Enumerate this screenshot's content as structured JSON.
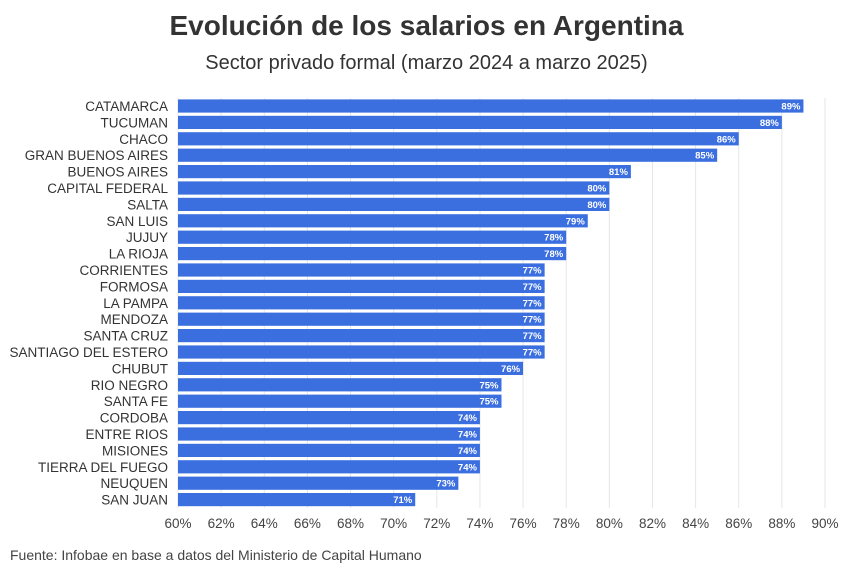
{
  "header": {
    "title": "Evolución de los salarios en Argentina",
    "subtitle": "Sector privado formal (marzo 2024 a marzo 2025)"
  },
  "footer": {
    "source": "Fuente: Infobae en base a datos del Ministerio de Capital Humano"
  },
  "chart_data": {
    "type": "bar",
    "orientation": "horizontal",
    "title": "Evolución de los salarios en Argentina",
    "subtitle": "Sector privado formal (marzo 2024 a marzo 2025)",
    "categories": [
      "CATAMARCA",
      "TUCUMAN",
      "CHACO",
      "GRAN BUENOS AIRES",
      "BUENOS AIRES",
      "CAPITAL FEDERAL",
      "SALTA",
      "SAN LUIS",
      "JUJUY",
      "LA RIOJA",
      "CORRIENTES",
      "FORMOSA",
      "LA PAMPA",
      "MENDOZA",
      "SANTA CRUZ",
      "SANTIAGO DEL ESTERO",
      "CHUBUT",
      "RIO NEGRO",
      "SANTA FE",
      "CORDOBA",
      "ENTRE RIOS",
      "MISIONES",
      "TIERRA DEL FUEGO",
      "NEUQUEN",
      "SAN JUAN"
    ],
    "values": [
      89,
      88,
      86,
      85,
      81,
      80,
      80,
      79,
      78,
      78,
      77,
      77,
      77,
      77,
      77,
      77,
      76,
      75,
      75,
      74,
      74,
      74,
      74,
      73,
      71
    ],
    "data_labels": [
      "89%",
      "88%",
      "86%",
      "85%",
      "81%",
      "80%",
      "80%",
      "79%",
      "78%",
      "78%",
      "77%",
      "77%",
      "77%",
      "77%",
      "77%",
      "77%",
      "76%",
      "75%",
      "75%",
      "74%",
      "74%",
      "74%",
      "74%",
      "73%",
      "71%"
    ],
    "xlim": [
      60,
      90
    ],
    "xticks": [
      60,
      62,
      64,
      66,
      68,
      70,
      72,
      74,
      76,
      78,
      80,
      82,
      84,
      86,
      88,
      90
    ],
    "xtick_labels": [
      "60%",
      "62%",
      "64%",
      "66%",
      "68%",
      "70%",
      "72%",
      "74%",
      "76%",
      "78%",
      "80%",
      "82%",
      "84%",
      "86%",
      "88%",
      "90%"
    ],
    "grid": "vertical",
    "bar_color": "#3b6fe0",
    "grid_color": "#e6e6e6"
  }
}
